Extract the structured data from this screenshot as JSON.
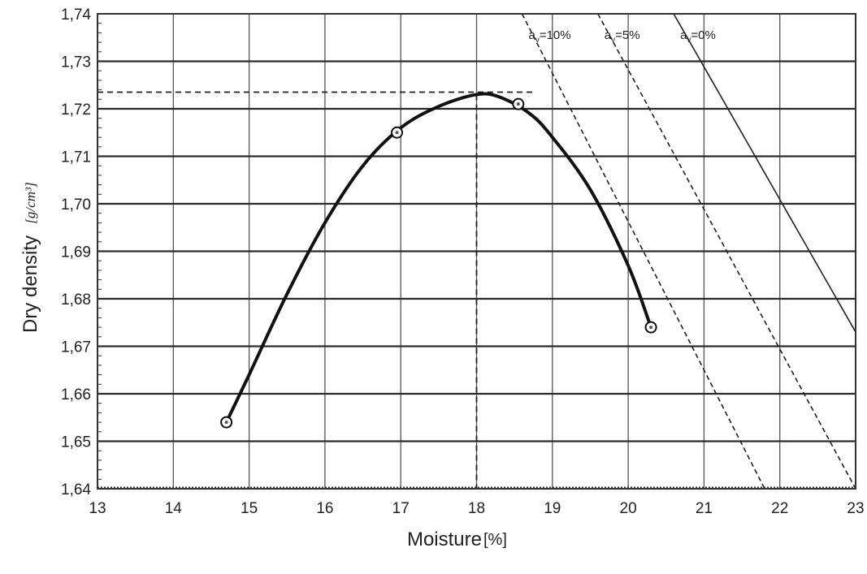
{
  "chart_data": {
    "type": "line",
    "xlabel": "Moisture",
    "xlabel_unit": "[%]",
    "ylabel": "Dry density",
    "ylabel_unit": "[g/cm³]",
    "xlim": [
      13,
      23
    ],
    "ylim": [
      1.64,
      1.74
    ],
    "x_ticks": [
      "13",
      "14",
      "15",
      "16",
      "17",
      "18",
      "19",
      "20",
      "21",
      "22",
      "23"
    ],
    "y_ticks": [
      "1,64",
      "1,65",
      "1,66",
      "1,67",
      "1,68",
      "1,69",
      "1,70",
      "1,71",
      "1,72",
      "1,73",
      "1,74"
    ],
    "grid": true,
    "series": [
      {
        "style": "solid-curve-with-circle-markers",
        "points": [
          {
            "x": 14.7,
            "y": 1.654
          },
          {
            "x": 16.95,
            "y": 1.715
          },
          {
            "x": 18.55,
            "y": 1.721
          },
          {
            "x": 20.3,
            "y": 1.674
          }
        ],
        "curve": [
          {
            "x": 14.7,
            "y": 1.654
          },
          {
            "x": 15.0,
            "y": 1.664
          },
          {
            "x": 15.5,
            "y": 1.681
          },
          {
            "x": 16.0,
            "y": 1.696
          },
          {
            "x": 16.5,
            "y": 1.708
          },
          {
            "x": 17.0,
            "y": 1.716
          },
          {
            "x": 17.5,
            "y": 1.7205
          },
          {
            "x": 18.0,
            "y": 1.723
          },
          {
            "x": 18.3,
            "y": 1.7225
          },
          {
            "x": 18.7,
            "y": 1.719
          },
          {
            "x": 19.0,
            "y": 1.714
          },
          {
            "x": 19.5,
            "y": 1.703
          },
          {
            "x": 20.0,
            "y": 1.687
          },
          {
            "x": 20.3,
            "y": 1.674
          }
        ]
      }
    ],
    "reference_lines": [
      {
        "style": "dashed",
        "from": {
          "x": 13.0,
          "y": 1.7235
        },
        "to": {
          "x": 18.75,
          "y": 1.7235
        }
      },
      {
        "style": "dashed",
        "from": {
          "x": 18.0,
          "y": 1.723
        },
        "to": {
          "x": 18.0,
          "y": 1.64
        }
      }
    ],
    "saturation_lines": [
      {
        "label": "a",
        "label_sub": "v",
        "label_value": "=10%",
        "style": "dashed",
        "from": {
          "x": 18.6,
          "y": 1.74
        },
        "to": {
          "x": 21.8,
          "y": 1.64
        }
      },
      {
        "label": "a",
        "label_sub": "v",
        "label_value": "=5%",
        "style": "dashed",
        "from": {
          "x": 19.6,
          "y": 1.74
        },
        "to": {
          "x": 23.0,
          "y": 1.64
        }
      },
      {
        "label": "a",
        "label_sub": "v",
        "label_value": "=0%",
        "style": "solid",
        "from": {
          "x": 20.6,
          "y": 1.74
        },
        "to": {
          "x": 23.0,
          "y": 1.673
        }
      }
    ]
  }
}
